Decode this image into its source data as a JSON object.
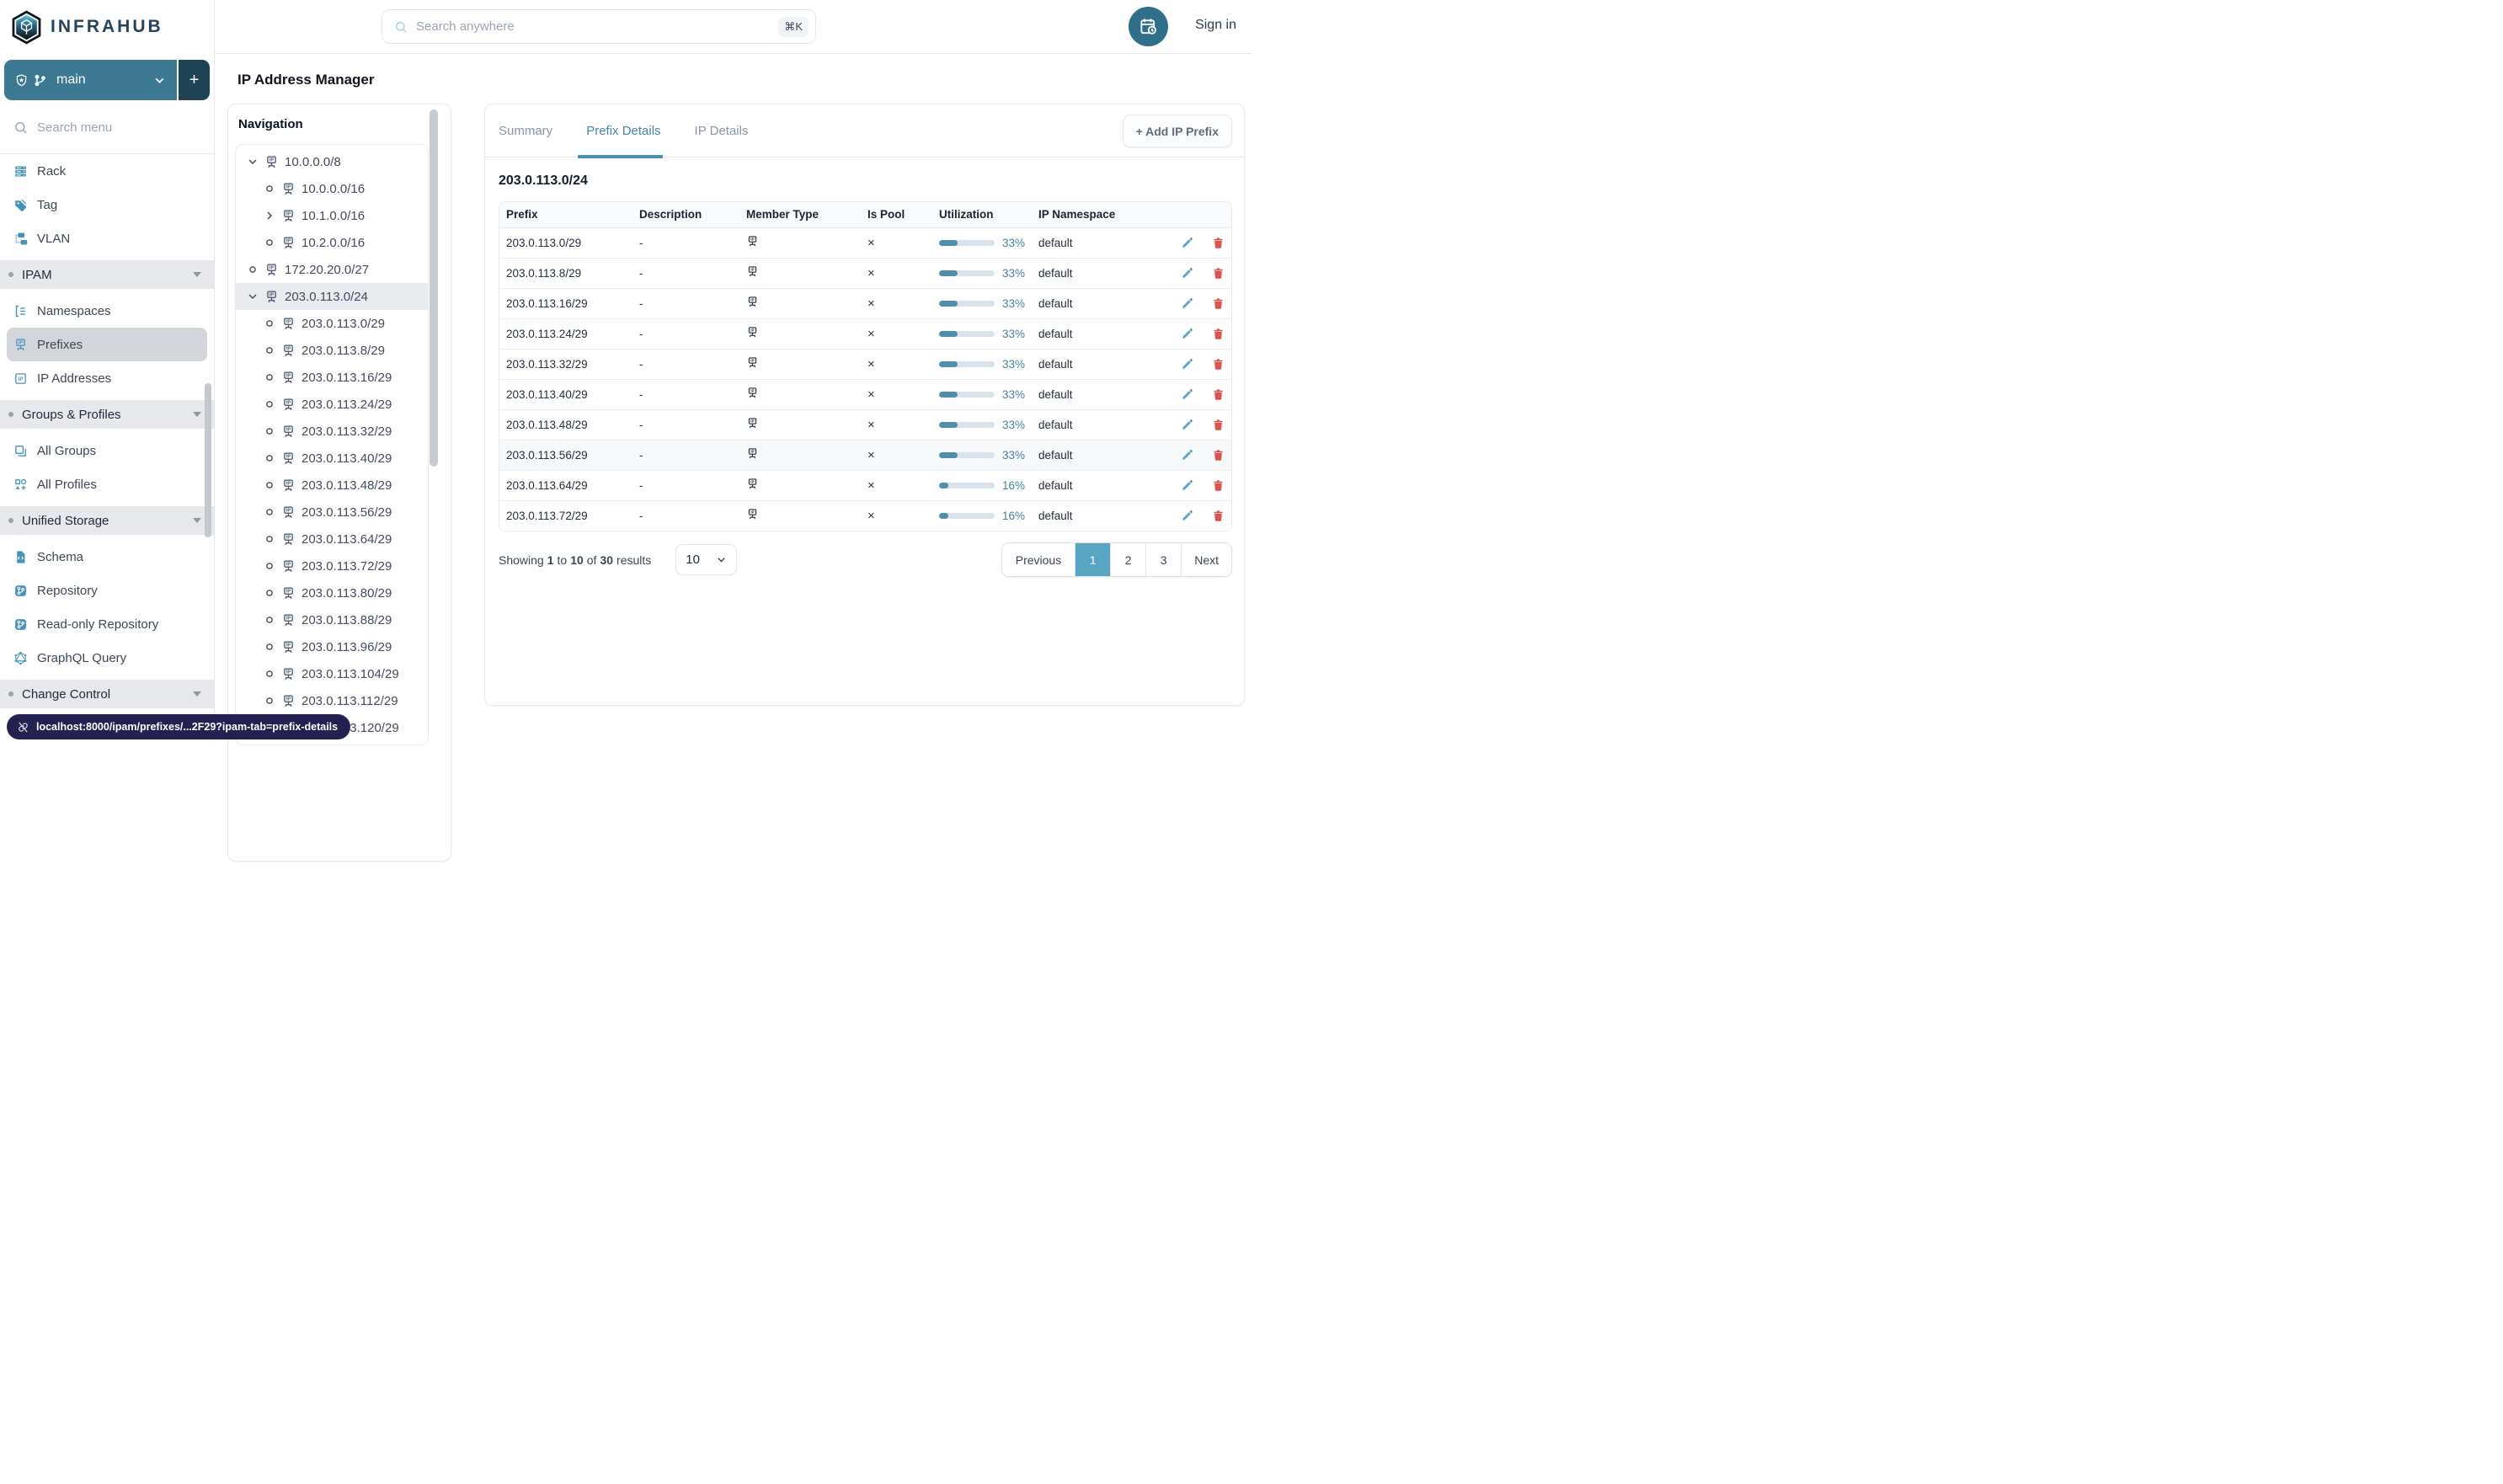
{
  "header": {
    "brand": "INFRAHUB",
    "search_placeholder": "Search anywhere",
    "search_shortcut": "⌘K",
    "sign_in": "Sign in"
  },
  "sidebar": {
    "branch_name": "main",
    "add_branch_label": "+",
    "menu_search_placeholder": "Search menu",
    "top_items": [
      {
        "icon": "rack-icon",
        "label": "Rack"
      },
      {
        "icon": "tag-icon",
        "label": "Tag"
      },
      {
        "icon": "vlan-icon",
        "label": "VLAN"
      }
    ],
    "sections": [
      {
        "label": "IPAM",
        "items": [
          {
            "icon": "namespaces-icon",
            "label": "Namespaces"
          },
          {
            "icon": "prefix-icon",
            "label": "Prefixes",
            "selected": true
          },
          {
            "icon": "ip-address-icon",
            "label": "IP Addresses"
          }
        ]
      },
      {
        "label": "Groups & Profiles",
        "items": [
          {
            "icon": "groups-icon",
            "label": "All Groups"
          },
          {
            "icon": "profiles-icon",
            "label": "All Profiles"
          }
        ]
      },
      {
        "label": "Unified Storage",
        "items": [
          {
            "icon": "schema-icon",
            "label": "Schema"
          },
          {
            "icon": "repository-icon",
            "label": "Repository"
          },
          {
            "icon": "repository-icon",
            "label": "Read-only Repository"
          },
          {
            "icon": "graphql-icon",
            "label": "GraphQL Query"
          }
        ]
      },
      {
        "label": "Change Control",
        "items": []
      }
    ]
  },
  "page_title": "IP Address Manager",
  "navigation": {
    "title": "Navigation",
    "tree": [
      {
        "label": "10.0.0.0/8",
        "level": 0,
        "marker": "expanded"
      },
      {
        "label": "10.0.0.0/16",
        "level": 1,
        "marker": "leaf"
      },
      {
        "label": "10.1.0.0/16",
        "level": 1,
        "marker": "collapsed"
      },
      {
        "label": "10.2.0.0/16",
        "level": 1,
        "marker": "leaf"
      },
      {
        "label": "172.20.20.0/27",
        "level": 0,
        "marker": "leaf"
      },
      {
        "label": "203.0.113.0/24",
        "level": 0,
        "marker": "expanded",
        "selected": true
      },
      {
        "label": "203.0.113.0/29",
        "level": 1,
        "marker": "leaf"
      },
      {
        "label": "203.0.113.8/29",
        "level": 1,
        "marker": "leaf"
      },
      {
        "label": "203.0.113.16/29",
        "level": 1,
        "marker": "leaf"
      },
      {
        "label": "203.0.113.24/29",
        "level": 1,
        "marker": "leaf"
      },
      {
        "label": "203.0.113.32/29",
        "level": 1,
        "marker": "leaf"
      },
      {
        "label": "203.0.113.40/29",
        "level": 1,
        "marker": "leaf"
      },
      {
        "label": "203.0.113.48/29",
        "level": 1,
        "marker": "leaf"
      },
      {
        "label": "203.0.113.56/29",
        "level": 1,
        "marker": "leaf"
      },
      {
        "label": "203.0.113.64/29",
        "level": 1,
        "marker": "leaf"
      },
      {
        "label": "203.0.113.72/29",
        "level": 1,
        "marker": "leaf"
      },
      {
        "label": "203.0.113.80/29",
        "level": 1,
        "marker": "leaf"
      },
      {
        "label": "203.0.113.88/29",
        "level": 1,
        "marker": "leaf"
      },
      {
        "label": "203.0.113.96/29",
        "level": 1,
        "marker": "leaf"
      },
      {
        "label": "203.0.113.104/29",
        "level": 1,
        "marker": "leaf"
      },
      {
        "label": "203.0.113.112/29",
        "level": 1,
        "marker": "leaf"
      },
      {
        "label": "203.0.113.120/29",
        "level": 1,
        "marker": "leaf"
      }
    ]
  },
  "main": {
    "tabs": [
      {
        "label": "Summary"
      },
      {
        "label": "Prefix Details",
        "active": true
      },
      {
        "label": "IP Details"
      }
    ],
    "add_button_label": "+ Add IP Prefix",
    "heading": "203.0.113.0/24",
    "table": {
      "columns": [
        "Prefix",
        "Description",
        "Member Type",
        "Is Pool",
        "Utilization",
        "IP Namespace"
      ],
      "rows": [
        {
          "prefix": "203.0.113.0/29",
          "description": "-",
          "member_type_icon": "prefix-icon",
          "is_pool": "×",
          "utilization": 33,
          "utilization_label": "33%",
          "namespace": "default"
        },
        {
          "prefix": "203.0.113.8/29",
          "description": "-",
          "member_type_icon": "prefix-icon",
          "is_pool": "×",
          "utilization": 33,
          "utilization_label": "33%",
          "namespace": "default"
        },
        {
          "prefix": "203.0.113.16/29",
          "description": "-",
          "member_type_icon": "prefix-icon",
          "is_pool": "×",
          "utilization": 33,
          "utilization_label": "33%",
          "namespace": "default"
        },
        {
          "prefix": "203.0.113.24/29",
          "description": "-",
          "member_type_icon": "prefix-icon",
          "is_pool": "×",
          "utilization": 33,
          "utilization_label": "33%",
          "namespace": "default"
        },
        {
          "prefix": "203.0.113.32/29",
          "description": "-",
          "member_type_icon": "prefix-icon",
          "is_pool": "×",
          "utilization": 33,
          "utilization_label": "33%",
          "namespace": "default"
        },
        {
          "prefix": "203.0.113.40/29",
          "description": "-",
          "member_type_icon": "prefix-icon",
          "is_pool": "×",
          "utilization": 33,
          "utilization_label": "33%",
          "namespace": "default"
        },
        {
          "prefix": "203.0.113.48/29",
          "description": "-",
          "member_type_icon": "prefix-icon",
          "is_pool": "×",
          "utilization": 33,
          "utilization_label": "33%",
          "namespace": "default"
        },
        {
          "prefix": "203.0.113.56/29",
          "description": "-",
          "member_type_icon": "prefix-icon",
          "is_pool": "×",
          "utilization": 33,
          "utilization_label": "33%",
          "namespace": "default",
          "hovered": true
        },
        {
          "prefix": "203.0.113.64/29",
          "description": "-",
          "member_type_icon": "prefix-icon",
          "is_pool": "×",
          "utilization": 16,
          "utilization_label": "16%",
          "namespace": "default"
        },
        {
          "prefix": "203.0.113.72/29",
          "description": "-",
          "member_type_icon": "prefix-icon",
          "is_pool": "×",
          "utilization": 16,
          "utilization_label": "16%",
          "namespace": "default"
        }
      ]
    },
    "pagination": {
      "showing_prefix": "Showing",
      "from": "1",
      "to_word": "to",
      "to": "10",
      "of_word": "of",
      "total": "30",
      "suffix": "results",
      "page_size": "10",
      "buttons": [
        {
          "label": "Previous"
        },
        {
          "label": "1",
          "active": true
        },
        {
          "label": "2"
        },
        {
          "label": "3"
        },
        {
          "label": "Next"
        }
      ]
    }
  },
  "statusbar": {
    "url": "localhost:8000/ipam/prefixes/...2F29?ipam-tab=prefix-details"
  },
  "colors": {
    "brand_teal": "#3e7994",
    "brand_dark_teal": "#1d4355",
    "accent_blue": "#4892ba",
    "active_tab": "#4584a6",
    "utilization_fill": "#4d8fa8",
    "utilization_track": "#dae3ec",
    "active_page": "#58a5c3",
    "edit_icon": "#5aa4c9",
    "delete_icon": "#d9534f",
    "status_pill": "#232150"
  }
}
